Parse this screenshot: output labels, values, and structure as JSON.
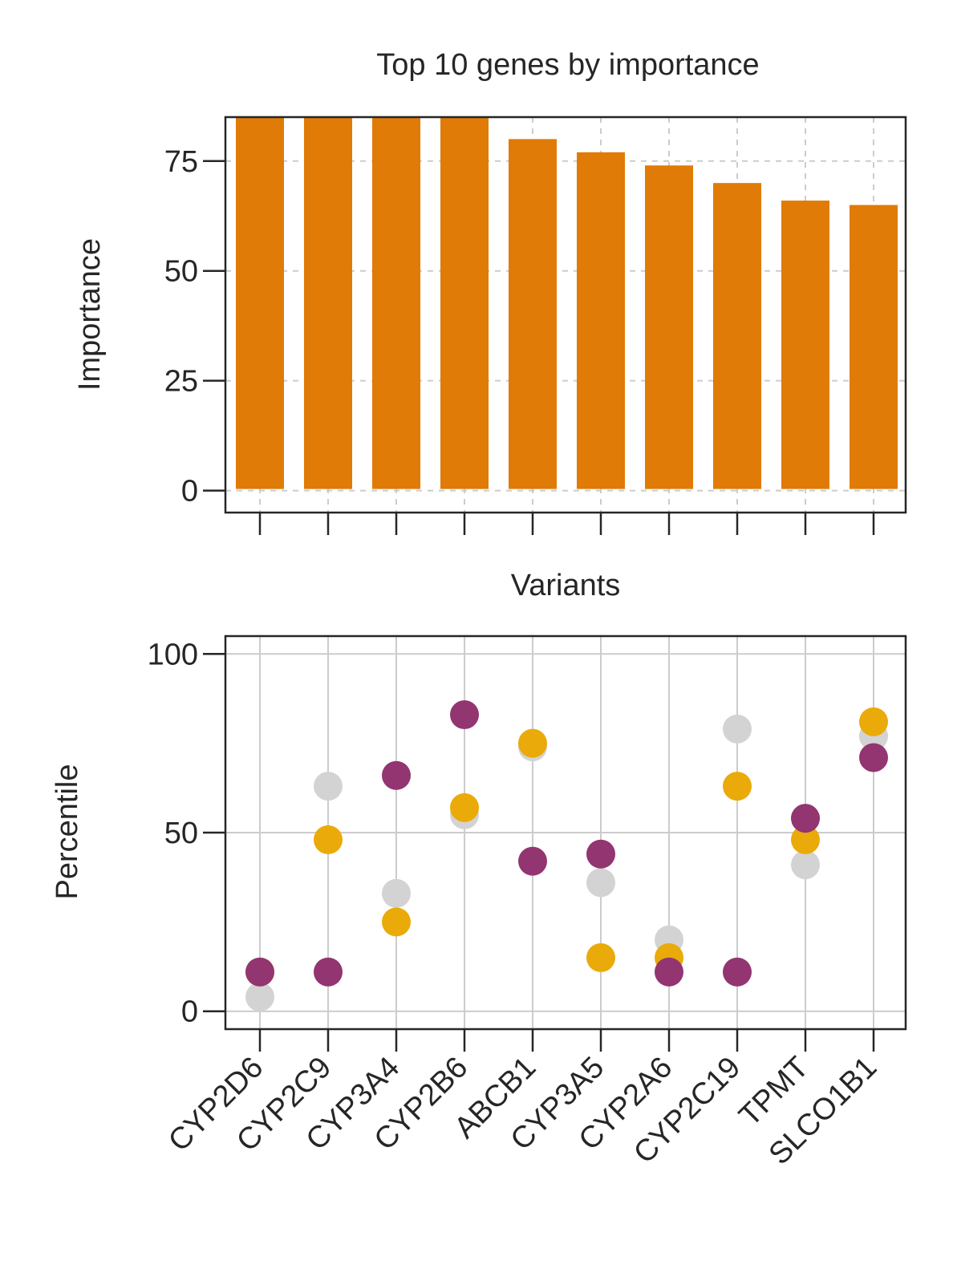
{
  "colors": {
    "bar": "#E07B07",
    "text": "#262626",
    "grid": "#cccccc",
    "background": "#ffffff"
  },
  "chart_data": [
    {
      "type": "bar",
      "title": "Top 10 genes by importance",
      "xlabel": "Variants",
      "ylabel": "Importance",
      "categories": [
        "CYP2D6",
        "CYP2C9",
        "CYP3A4",
        "CYP2B6",
        "ABCB1",
        "CYP3A5",
        "CYP2A6",
        "CYP2C19",
        "TPMT",
        "SLCO1B1"
      ],
      "values": [
        86,
        86,
        86,
        86,
        80,
        77,
        74,
        70,
        66,
        65
      ],
      "ylim": [
        -5,
        85
      ],
      "yticks": [
        0,
        25,
        50,
        75
      ],
      "yticklabels": [
        "0",
        "25",
        "50",
        "75"
      ],
      "xticklabels_shown": false,
      "grid": true,
      "grid_style": "dashed"
    },
    {
      "type": "scatter",
      "xlabel": "",
      "ylabel": "Percentile",
      "categories": [
        "CYP2D6",
        "CYP2C9",
        "CYP3A4",
        "CYP2B6",
        "ABCB1",
        "CYP3A5",
        "CYP2A6",
        "CYP2C19",
        "TPMT",
        "SLCO1B1"
      ],
      "ylim": [
        -5,
        105
      ],
      "yticks": [
        0,
        50,
        100
      ],
      "yticklabels": [
        "0",
        "50",
        "100"
      ],
      "grid": true,
      "grid_style": "solid",
      "series": [
        {
          "color": "#D3D3D3",
          "values": [
            4,
            63,
            33,
            55,
            74,
            36,
            20,
            79,
            41,
            77
          ]
        },
        {
          "color": "#EAAA09",
          "values": [
            11,
            48,
            25,
            57,
            75,
            15,
            15,
            63,
            48,
            81
          ]
        },
        {
          "color": "#923570",
          "values": [
            11,
            11,
            66,
            83,
            42,
            44,
            11,
            11,
            54,
            71
          ]
        }
      ]
    }
  ]
}
